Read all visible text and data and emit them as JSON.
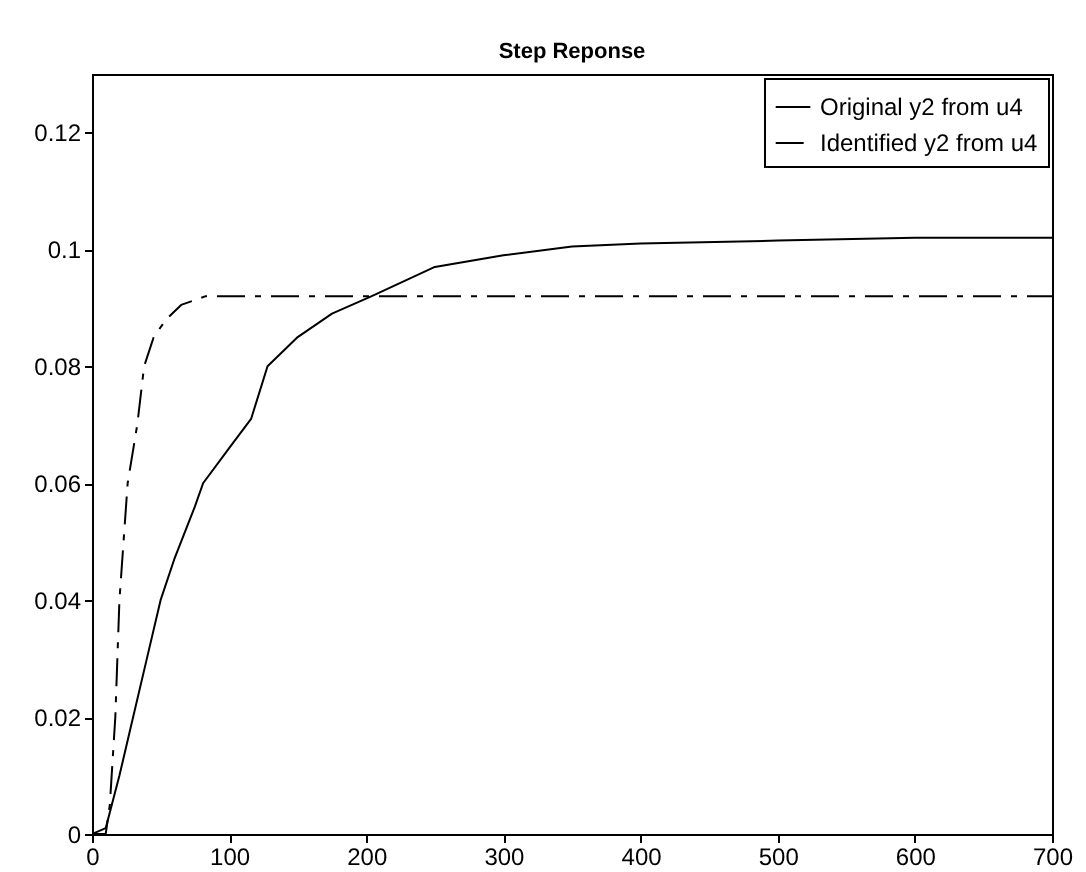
{
  "chart_data": {
    "type": "line",
    "title": "Step Reponse",
    "xlim": [
      0,
      700
    ],
    "xticks": [
      0,
      100,
      200,
      300,
      400,
      500,
      600,
      700
    ],
    "ylim": [
      0,
      0.13
    ],
    "yticks": [
      0,
      0.02,
      0.04,
      0.06,
      0.08,
      0.1,
      0.12
    ],
    "legend": "top right",
    "grid": false,
    "series": [
      {
        "name": "Original y2 from u4",
        "color": "#000000",
        "line_style": "solid",
        "x": [
          0,
          10,
          20,
          30,
          40,
          50,
          60,
          75,
          81,
          100,
          116,
          128,
          150,
          175,
          204,
          250,
          300,
          350,
          400,
          500,
          600,
          700
        ],
        "values": [
          0,
          0.001,
          0.01,
          0.02,
          0.03,
          0.04,
          0.047,
          0.056,
          0.06,
          0.066,
          0.071,
          0.08,
          0.085,
          0.089,
          0.092,
          0.097,
          0.099,
          0.1005,
          0.101,
          0.1015,
          0.102,
          0.102
        ]
      },
      {
        "name": "Identified y2 from u4",
        "color": "#000000",
        "line_style": "dashed",
        "x": [
          0,
          10,
          13,
          17,
          20,
          26,
          33,
          38,
          45,
          54,
          65,
          83,
          700
        ],
        "values": [
          0,
          0,
          0.005,
          0.02,
          0.04,
          0.06,
          0.07,
          0.08,
          0.085,
          0.088,
          0.0905,
          0.092,
          0.092
        ]
      }
    ]
  }
}
